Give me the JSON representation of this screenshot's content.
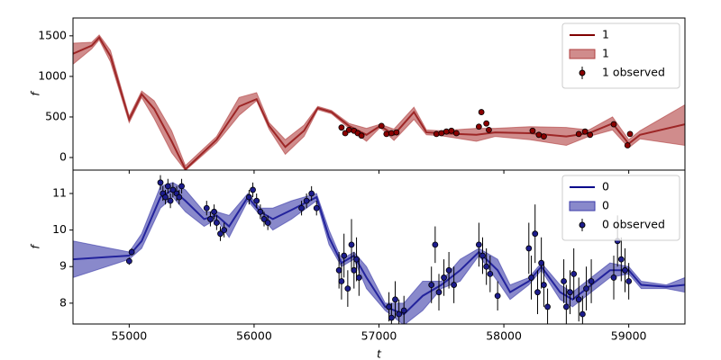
{
  "chart_data": [
    {
      "type": "line",
      "ylabel": "f",
      "xlim": [
        54550,
        59450
      ],
      "ylim": [
        -155,
        1720
      ],
      "yticks": [
        0,
        500,
        1000,
        1500
      ],
      "legend": "upper right",
      "series": [
        {
          "name": "1",
          "kind": "line",
          "color": "#800000",
          "x": [
            54550,
            54700,
            54760,
            54850,
            55000,
            55100,
            55200,
            55340,
            55450,
            55700,
            55880,
            56020,
            56120,
            56250,
            56400,
            56510,
            56620,
            56760,
            56900,
            57010,
            57120,
            57280,
            57380,
            57490,
            57780,
            57930,
            58210,
            58500,
            58680,
            58870,
            59000,
            59090,
            59450
          ],
          "values": [
            1280,
            1380,
            1480,
            1250,
            470,
            780,
            600,
            200,
            -145,
            220,
            630,
            720,
            390,
            130,
            330,
            610,
            560,
            390,
            280,
            390,
            280,
            560,
            310,
            300,
            280,
            310,
            300,
            260,
            300,
            420,
            170,
            280,
            410
          ]
        },
        {
          "name": "1",
          "kind": "band",
          "color": "#b04040",
          "x": [
            54550,
            54700,
            54760,
            54850,
            55000,
            55100,
            55200,
            55340,
            55450,
            55700,
            55880,
            56020,
            56120,
            56250,
            56400,
            56510,
            56620,
            56760,
            56900,
            57010,
            57120,
            57280,
            57380,
            57490,
            57780,
            57930,
            58210,
            58500,
            58680,
            58870,
            59000,
            59090,
            59450
          ],
          "lower": [
            1150,
            1340,
            1450,
            1180,
            430,
            740,
            480,
            60,
            -160,
            180,
            520,
            700,
            350,
            40,
            260,
            590,
            540,
            360,
            200,
            370,
            210,
            470,
            280,
            270,
            200,
            260,
            220,
            150,
            260,
            340,
            120,
            230,
            150
          ],
          "upper": [
            1410,
            1420,
            1510,
            1320,
            510,
            820,
            700,
            330,
            -100,
            260,
            740,
            800,
            430,
            220,
            400,
            630,
            580,
            420,
            360,
            410,
            350,
            620,
            340,
            330,
            360,
            360,
            380,
            370,
            340,
            500,
            220,
            330,
            650
          ]
        },
        {
          "name": "1 observed",
          "kind": "points",
          "color": "#8b0000",
          "x": [
            56700,
            56730,
            56760,
            56800,
            56830,
            56860,
            57020,
            57060,
            57100,
            57140,
            57460,
            57500,
            57540,
            57580,
            57620,
            57800,
            57820,
            57860,
            57880,
            58230,
            58280,
            58320,
            58600,
            58650,
            58690,
            58880,
            58990,
            59010
          ],
          "values": [
            370,
            300,
            340,
            330,
            300,
            270,
            390,
            290,
            300,
            310,
            290,
            300,
            320,
            330,
            300,
            380,
            560,
            420,
            340,
            330,
            280,
            260,
            290,
            320,
            280,
            410,
            150,
            290
          ]
        }
      ]
    },
    {
      "type": "line",
      "ylabel": "f",
      "xlabel": "t",
      "xlim": [
        54550,
        59450
      ],
      "ylim": [
        7.43,
        11.64
      ],
      "yticks": [
        8,
        9,
        10,
        11
      ],
      "xticks": [
        55000,
        56000,
        57000,
        58000,
        59000
      ],
      "legend": "upper right",
      "series": [
        {
          "name": "0",
          "kind": "line",
          "color": "#00008b",
          "x": [
            54550,
            55000,
            55100,
            55250,
            55350,
            55450,
            55600,
            55700,
            55800,
            55950,
            56050,
            56150,
            56300,
            56500,
            56600,
            56700,
            56800,
            56900,
            57050,
            57200,
            57350,
            57500,
            57650,
            57800,
            57950,
            58050,
            58200,
            58300,
            58450,
            58550,
            58700,
            58850,
            59000,
            59100,
            59300,
            59450
          ],
          "values": [
            9.2,
            9.3,
            9.7,
            10.9,
            11.1,
            10.8,
            10.3,
            10.4,
            10.1,
            10.9,
            10.5,
            10.3,
            10.55,
            10.9,
            9.8,
            9.1,
            9.3,
            8.7,
            7.9,
            7.7,
            8.2,
            8.5,
            8.9,
            9.4,
            8.9,
            8.3,
            8.6,
            9.0,
            8.3,
            8.1,
            8.5,
            8.9,
            8.9,
            8.5,
            8.45,
            8.5
          ]
        },
        {
          "name": "0",
          "kind": "band",
          "color": "#3a3aa8",
          "x": [
            54550,
            55000,
            55100,
            55250,
            55350,
            55450,
            55600,
            55700,
            55800,
            55950,
            56050,
            56150,
            56300,
            56500,
            56600,
            56700,
            56800,
            56900,
            57050,
            57200,
            57350,
            57500,
            57650,
            57800,
            57950,
            58050,
            58200,
            58300,
            58450,
            58550,
            58700,
            58850,
            59000,
            59100,
            59300,
            59450
          ],
          "lower": [
            8.7,
            9.2,
            9.5,
            10.6,
            10.9,
            10.5,
            10.1,
            10.3,
            9.8,
            10.8,
            10.4,
            10.0,
            10.3,
            10.8,
            9.6,
            9.0,
            9.2,
            8.4,
            7.8,
            7.4,
            7.8,
            8.4,
            8.6,
            9.3,
            8.6,
            8.1,
            8.5,
            8.9,
            8.1,
            7.9,
            8.3,
            8.7,
            8.8,
            8.4,
            8.4,
            8.3
          ]
        },
        {
          "name": "0 observed",
          "kind": "points",
          "color": "#1c1c8c",
          "x": [
            55000,
            55020,
            55250,
            55270,
            55290,
            55310,
            55330,
            55350,
            55380,
            55400,
            55420,
            55620,
            55650,
            55680,
            55700,
            55730,
            55760,
            55960,
            55990,
            56020,
            56050,
            56080,
            56110,
            56380,
            56420,
            56460,
            56500,
            56680,
            56700,
            56720,
            56750,
            56780,
            56800,
            56820,
            56840,
            57080,
            57100,
            57130,
            57160,
            57200,
            57420,
            57450,
            57480,
            57520,
            57560,
            57600,
            57800,
            57830,
            57860,
            57890,
            57950,
            58200,
            58220,
            58250,
            58270,
            58300,
            58320,
            58350,
            58480,
            58500,
            58530,
            58560,
            58600,
            58630,
            58660,
            58700,
            58880,
            58910,
            58940,
            58970,
            59000
          ],
          "values": [
            9.15,
            9.4,
            11.3,
            11.0,
            10.9,
            11.2,
            10.8,
            11.1,
            11.0,
            10.9,
            11.2,
            10.6,
            10.3,
            10.5,
            10.2,
            9.9,
            10.0,
            10.9,
            11.1,
            10.8,
            10.5,
            10.3,
            10.2,
            10.6,
            10.8,
            11.0,
            10.6,
            8.9,
            8.6,
            9.3,
            8.4,
            9.6,
            8.9,
            9.2,
            8.7,
            7.9,
            7.6,
            8.1,
            7.7,
            7.8,
            8.5,
            9.6,
            8.3,
            8.7,
            8.9,
            8.5,
            9.6,
            9.3,
            9.0,
            8.8,
            8.2,
            9.5,
            8.7,
            9.9,
            8.3,
            9.1,
            8.5,
            7.9,
            8.6,
            7.9,
            8.3,
            8.8,
            8.1,
            7.7,
            8.4,
            8.6,
            8.7,
            9.7,
            9.2,
            8.9,
            8.6
          ],
          "errors": [
            0.1,
            0.1,
            0.2,
            0.2,
            0.2,
            0.2,
            0.2,
            0.2,
            0.2,
            0.2,
            0.2,
            0.2,
            0.2,
            0.2,
            0.2,
            0.2,
            0.2,
            0.2,
            0.2,
            0.2,
            0.2,
            0.2,
            0.2,
            0.2,
            0.2,
            0.2,
            0.2,
            0.5,
            0.5,
            0.6,
            0.5,
            0.7,
            0.5,
            0.6,
            0.5,
            0.4,
            0.4,
            0.5,
            0.4,
            0.4,
            0.5,
            0.5,
            0.5,
            0.5,
            0.5,
            0.5,
            0.6,
            0.5,
            0.5,
            0.5,
            0.4,
            0.7,
            0.6,
            0.8,
            0.6,
            0.7,
            0.6,
            0.5,
            0.6,
            0.6,
            0.6,
            0.7,
            0.6,
            0.5,
            0.6,
            0.6,
            0.6,
            0.7,
            0.6,
            0.6,
            0.5
          ]
        }
      ]
    }
  ]
}
